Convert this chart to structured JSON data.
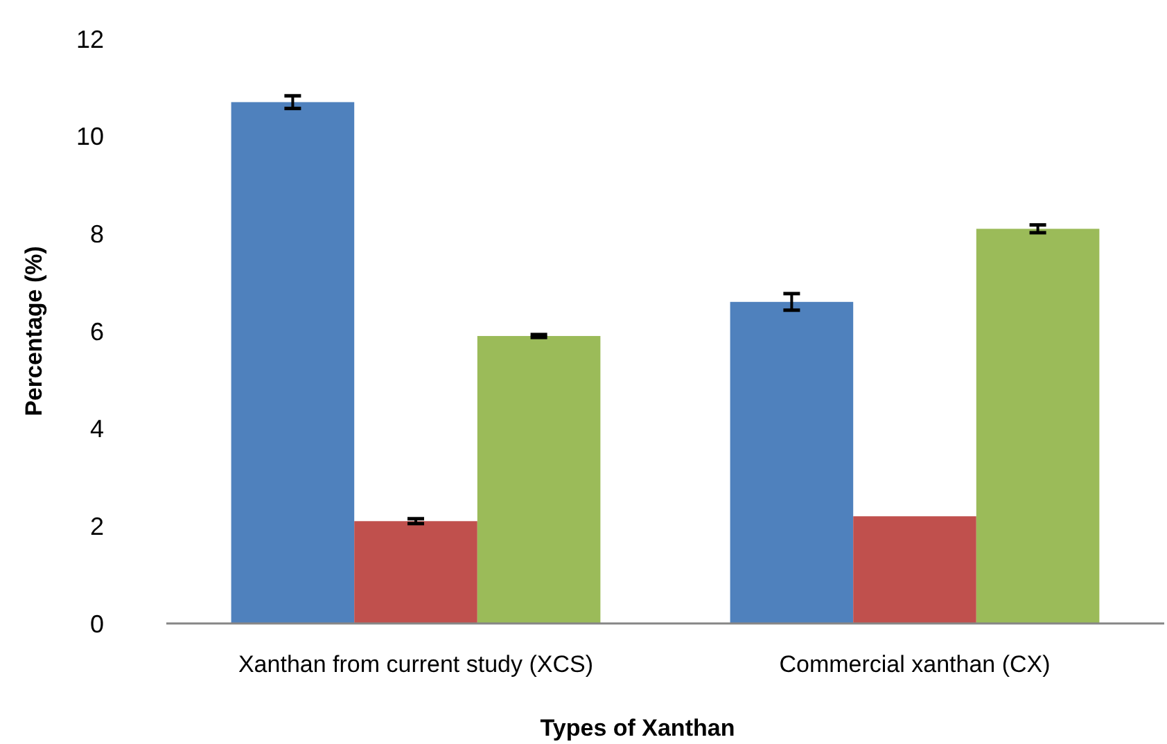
{
  "chart_data": {
    "type": "bar",
    "xlabel": "Types of Xanthan",
    "ylabel": "Percentage (%)",
    "categories": [
      "Xanthan from current study (XCS)",
      "Commercial xanthan (CX)"
    ],
    "series": [
      {
        "color": "#4f81bd",
        "values": [
          10.7,
          6.6
        ],
        "errors": [
          0.13,
          0.17
        ]
      },
      {
        "color": "#c0504d",
        "values": [
          2.1,
          2.2
        ],
        "errors": [
          0.05,
          null
        ]
      },
      {
        "color": "#9bbb59",
        "values": [
          5.9,
          8.1
        ],
        "errors": [
          0.03,
          0.08
        ]
      }
    ],
    "ylim": [
      0,
      12
    ],
    "yticks": [
      0,
      2,
      4,
      6,
      8,
      10,
      12
    ],
    "grid": false
  }
}
